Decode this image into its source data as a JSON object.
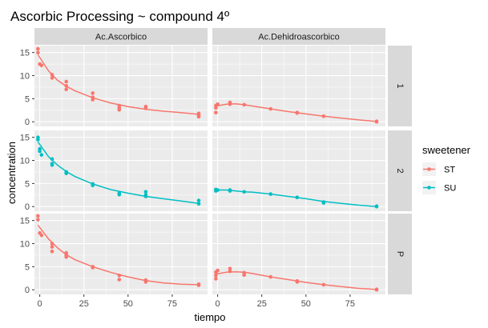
{
  "chart_data": {
    "type": "scatter",
    "title": "Ascorbic Processing ~ compound 4º",
    "xlabel": "tiempo",
    "ylabel": "concentration",
    "xlim": [
      -3,
      95
    ],
    "ylim": [
      -1,
      16.5
    ],
    "x_ticks": [
      0,
      25,
      50,
      75
    ],
    "y_ticks": [
      0,
      5,
      10,
      15
    ],
    "grid": true,
    "legend": {
      "title": "sweetener",
      "placement": "right",
      "entries": [
        {
          "label": "ST",
          "color": "#F8766D"
        },
        {
          "label": "SU",
          "color": "#00BFC4"
        }
      ]
    },
    "columns": [
      "Ac.Ascorbico",
      "Ac.Dehidroascorbico"
    ],
    "rows": [
      "1",
      "2",
      "P"
    ],
    "panels": [
      {
        "row": "1",
        "col": "Ac.Ascorbico",
        "series": "ST",
        "points": [
          [
            -1,
            15.8
          ],
          [
            -1,
            15.0
          ],
          [
            0,
            12.5
          ],
          [
            1,
            12.2
          ],
          [
            7,
            10.2
          ],
          [
            7,
            9.5
          ],
          [
            15,
            8.7
          ],
          [
            15,
            7.8
          ],
          [
            15,
            7.0
          ],
          [
            30,
            6.2
          ],
          [
            30,
            5.3
          ],
          [
            30,
            4.8
          ],
          [
            45,
            3.5
          ],
          [
            45,
            3.0
          ],
          [
            45,
            2.6
          ],
          [
            60,
            3.3
          ],
          [
            60,
            2.9
          ],
          [
            90,
            1.8
          ],
          [
            90,
            1.4
          ],
          [
            90,
            1.1
          ]
        ],
        "fit": [
          [
            -1,
            14.5
          ],
          [
            5,
            11.0
          ],
          [
            10,
            9.0
          ],
          [
            15,
            7.7
          ],
          [
            20,
            6.7
          ],
          [
            30,
            5.2
          ],
          [
            40,
            4.1
          ],
          [
            50,
            3.3
          ],
          [
            60,
            2.7
          ],
          [
            70,
            2.3
          ],
          [
            80,
            2.0
          ],
          [
            90,
            1.6
          ]
        ]
      },
      {
        "row": "1",
        "col": "Ac.Dehidroascorbico",
        "series": "ST",
        "points": [
          [
            -1,
            3.5
          ],
          [
            -1,
            3.0
          ],
          [
            -1,
            2.0
          ],
          [
            0,
            3.8
          ],
          [
            7,
            4.2
          ],
          [
            7,
            3.8
          ],
          [
            15,
            3.7
          ],
          [
            30,
            2.8
          ],
          [
            45,
            2.0
          ],
          [
            45,
            1.9
          ],
          [
            60,
            1.2
          ],
          [
            90,
            0.1
          ],
          [
            90,
            0.0
          ]
        ],
        "fit": [
          [
            -1,
            3.4
          ],
          [
            5,
            3.8
          ],
          [
            10,
            3.9
          ],
          [
            15,
            3.7
          ],
          [
            20,
            3.4
          ],
          [
            30,
            2.8
          ],
          [
            40,
            2.2
          ],
          [
            50,
            1.7
          ],
          [
            60,
            1.2
          ],
          [
            70,
            0.8
          ],
          [
            80,
            0.4
          ],
          [
            90,
            0.05
          ]
        ]
      },
      {
        "row": "2",
        "col": "Ac.Ascorbico",
        "series": "SU",
        "points": [
          [
            -1,
            15.0
          ],
          [
            -1,
            14.5
          ],
          [
            0,
            12.5
          ],
          [
            0,
            12.0
          ],
          [
            1,
            11.2
          ],
          [
            7,
            10.3
          ],
          [
            7,
            9.3
          ],
          [
            7,
            9.0
          ],
          [
            15,
            7.5
          ],
          [
            15,
            7.2
          ],
          [
            30,
            4.9
          ],
          [
            30,
            4.6
          ],
          [
            45,
            2.9
          ],
          [
            45,
            2.6
          ],
          [
            60,
            3.2
          ],
          [
            60,
            2.5
          ],
          [
            60,
            2.2
          ],
          [
            90,
            1.3
          ],
          [
            90,
            0.6
          ]
        ],
        "fit": [
          [
            -1,
            14.0
          ],
          [
            5,
            10.8
          ],
          [
            10,
            9.0
          ],
          [
            15,
            7.6
          ],
          [
            20,
            6.5
          ],
          [
            30,
            4.9
          ],
          [
            40,
            3.7
          ],
          [
            50,
            2.9
          ],
          [
            60,
            2.2
          ],
          [
            70,
            1.7
          ],
          [
            80,
            1.2
          ],
          [
            90,
            0.7
          ]
        ]
      },
      {
        "row": "2",
        "col": "Ac.Dehidroascorbico",
        "series": "SU",
        "points": [
          [
            -1,
            3.7
          ],
          [
            -1,
            3.4
          ],
          [
            0,
            3.6
          ],
          [
            7,
            3.6
          ],
          [
            7,
            3.4
          ],
          [
            15,
            3.2
          ],
          [
            30,
            2.7
          ],
          [
            45,
            2.0
          ],
          [
            60,
            1.0
          ],
          [
            60,
            0.8
          ],
          [
            90,
            0.1
          ],
          [
            90,
            0.0
          ]
        ],
        "fit": [
          [
            -1,
            3.6
          ],
          [
            5,
            3.6
          ],
          [
            10,
            3.4
          ],
          [
            15,
            3.2
          ],
          [
            20,
            3.1
          ],
          [
            30,
            2.7
          ],
          [
            40,
            2.2
          ],
          [
            50,
            1.7
          ],
          [
            60,
            1.1
          ],
          [
            70,
            0.7
          ],
          [
            80,
            0.3
          ],
          [
            90,
            0.0
          ]
        ]
      },
      {
        "row": "P",
        "col": "Ac.Ascorbico",
        "series": "ST",
        "points": [
          [
            -1,
            16.0
          ],
          [
            -1,
            15.2
          ],
          [
            0,
            12.3
          ],
          [
            1,
            11.8
          ],
          [
            7,
            10.0
          ],
          [
            7,
            9.3
          ],
          [
            7,
            8.3
          ],
          [
            15,
            8.0
          ],
          [
            15,
            7.5
          ],
          [
            15,
            7.1
          ],
          [
            30,
            5.0
          ],
          [
            30,
            4.8
          ],
          [
            45,
            3.1
          ],
          [
            45,
            2.2
          ],
          [
            60,
            2.1
          ],
          [
            60,
            1.7
          ],
          [
            90,
            1.2
          ],
          [
            90,
            1.0
          ]
        ],
        "fit": [
          [
            -1,
            14.0
          ],
          [
            5,
            11.0
          ],
          [
            10,
            9.1
          ],
          [
            15,
            7.6
          ],
          [
            20,
            6.5
          ],
          [
            30,
            5.0
          ],
          [
            40,
            3.8
          ],
          [
            50,
            2.8
          ],
          [
            60,
            2.0
          ],
          [
            70,
            1.5
          ],
          [
            80,
            1.2
          ],
          [
            90,
            1.1
          ]
        ]
      },
      {
        "row": "P",
        "col": "Ac.Dehidroascorbico",
        "series": "ST",
        "points": [
          [
            -1,
            3.8
          ],
          [
            -1,
            3.1
          ],
          [
            -1,
            2.4
          ],
          [
            0,
            4.2
          ],
          [
            7,
            4.6
          ],
          [
            7,
            4.0
          ],
          [
            15,
            3.7
          ],
          [
            15,
            3.2
          ],
          [
            30,
            2.8
          ],
          [
            45,
            1.9
          ],
          [
            45,
            1.7
          ],
          [
            60,
            1.1
          ],
          [
            90,
            0.1
          ],
          [
            90,
            0.0
          ]
        ],
        "fit": [
          [
            -1,
            3.4
          ],
          [
            5,
            3.8
          ],
          [
            10,
            3.9
          ],
          [
            15,
            3.8
          ],
          [
            20,
            3.5
          ],
          [
            30,
            2.8
          ],
          [
            40,
            2.2
          ],
          [
            50,
            1.6
          ],
          [
            60,
            1.1
          ],
          [
            70,
            0.7
          ],
          [
            80,
            0.3
          ],
          [
            90,
            0.05
          ]
        ]
      }
    ]
  }
}
